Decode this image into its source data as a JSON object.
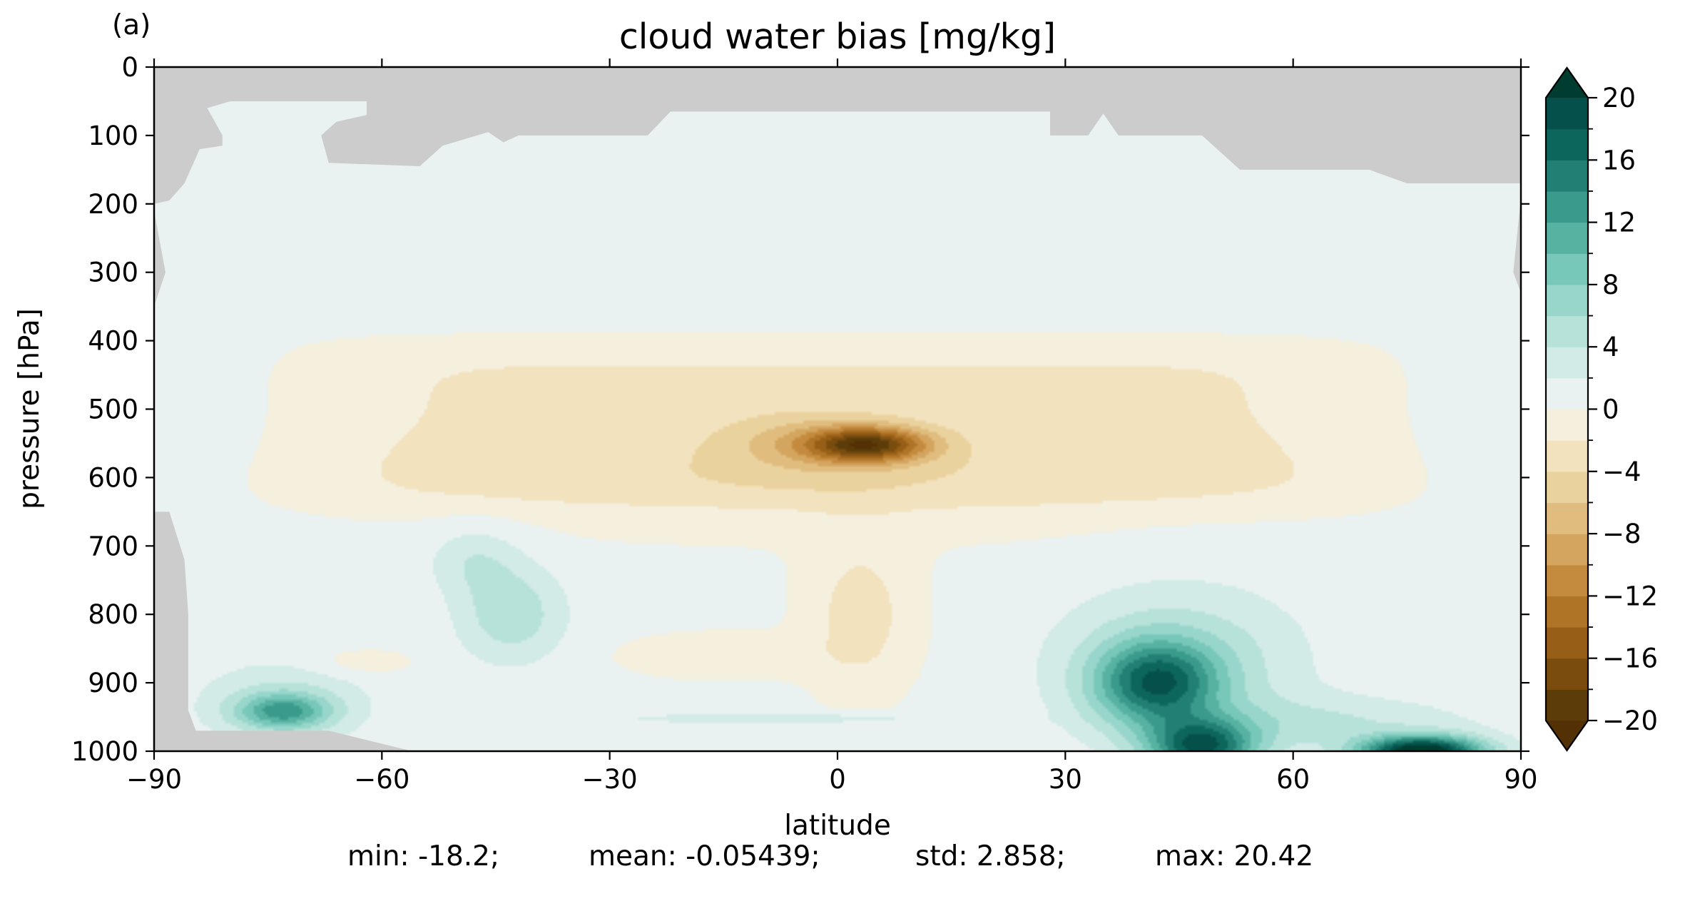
{
  "chart_data": {
    "type": "heatmap",
    "panel_label": "(a)",
    "title": "cloud water bias [mg/kg]",
    "xlabel": "latitude",
    "ylabel": "pressure [hPa]",
    "xlim": [
      -90,
      90
    ],
    "ylim": [
      1000,
      0
    ],
    "x_axis_ticks": [
      "−90",
      "−60",
      "−30",
      "0",
      "30",
      "60",
      "90"
    ],
    "x_axis_tick_values": [
      -90,
      -60,
      -30,
      0,
      30,
      60,
      90
    ],
    "y_axis_ticks": [
      "0",
      "100",
      "200",
      "300",
      "400",
      "500",
      "600",
      "700",
      "800",
      "900",
      "1000"
    ],
    "y_axis_tick_values": [
      0,
      100,
      200,
      300,
      400,
      500,
      600,
      700,
      800,
      900,
      1000
    ],
    "colorbar": {
      "range": [
        -20,
        20
      ],
      "extend": "both",
      "levels": [
        -20,
        -18,
        -16,
        -14,
        -12,
        -10,
        -8,
        -6,
        -4,
        -2,
        0,
        2,
        4,
        6,
        8,
        10,
        12,
        14,
        16,
        18,
        20
      ],
      "tick_values": [
        -20,
        -16,
        -12,
        -8,
        -4,
        0,
        4,
        8,
        12,
        16,
        20
      ],
      "tick_labels": [
        "−20",
        "−16",
        "−12",
        "−8",
        "−4",
        "0",
        "4",
        "8",
        "12",
        "16",
        "20"
      ],
      "colors": [
        "#5c3d0a",
        "#7a4d0e",
        "#965e16",
        "#b07427",
        "#c48b3f",
        "#d4a55e",
        "#e0bd7e",
        "#ead29e",
        "#f2e2bd",
        "#f5efdd",
        "#e9f2f1",
        "#d2ebe7",
        "#b7e2da",
        "#98d6cb",
        "#78c8b9",
        "#57b2a2",
        "#3a9a8b",
        "#217f73",
        "#0d665b",
        "#05504a"
      ],
      "under_color": "#543005",
      "over_color": "#003c30",
      "missing_color": "#cccccc"
    },
    "field": {
      "background_level": 0.5,
      "features": [
        {
          "name": "subtropical negative band",
          "lat": [
            -60,
            60
          ],
          "p": [
            350,
            700
          ],
          "peak": -3
        },
        {
          "name": "tropical mid-level minimum",
          "lat": 4,
          "p": 550,
          "peak": -17
        },
        {
          "name": "tropical lower minimum",
          "lat": 3,
          "p": 800,
          "peak": -6
        },
        {
          "name": "lower tropical negative patch",
          "lat": -15,
          "p": 860,
          "peak": -4
        },
        {
          "name": "southern ocean maximum",
          "lat": -73,
          "p": 940,
          "peak": 10
        },
        {
          "name": "southern midlatitude positive",
          "lat": -42,
          "p": 800,
          "peak": 6
        },
        {
          "name": "northern midlatitude maximum",
          "lat": 42,
          "p": 900,
          "peak": 14
        },
        {
          "name": "northern surface maximum",
          "lat": 48,
          "p": 995,
          "peak": 18
        },
        {
          "name": "arctic surface maximum",
          "lat": 77,
          "p": 1000,
          "peak": 20
        }
      ]
    },
    "stats": {
      "min": -18.2,
      "mean": -0.05439,
      "std": 2.858,
      "max": 20.42
    }
  },
  "stats_line": {
    "min": "min: -18.2;",
    "mean": "mean: -0.05439;",
    "std": "std: 2.858;",
    "max": "max: 20.42"
  }
}
